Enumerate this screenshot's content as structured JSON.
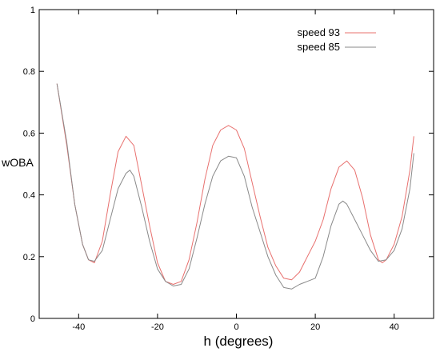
{
  "chart_data": {
    "type": "line",
    "title": "",
    "xlabel": "h (degrees)",
    "ylabel": "wOBA",
    "xlim": [
      -50,
      50
    ],
    "ylim": [
      0,
      1
    ],
    "x_ticks": [
      -40,
      -20,
      0,
      20,
      40
    ],
    "x_tick_labels": [
      "-40",
      "-20",
      "0",
      "20",
      "40"
    ],
    "y_ticks": [
      0,
      0.2,
      0.4,
      0.6,
      0.8,
      1
    ],
    "y_tick_labels": [
      "0",
      "0.2",
      "0.4",
      "0.6",
      "0.8",
      "1"
    ],
    "grid": false,
    "legend_position": "top-right",
    "series": [
      {
        "name": "speed 93",
        "color": "#e8706e",
        "x": [
          -45.5,
          -43,
          -41,
          -39,
          -37.5,
          -36,
          -34,
          -32,
          -30,
          -28,
          -26,
          -24,
          -22,
          -20,
          -18,
          -16,
          -14,
          -12,
          -10,
          -8,
          -6,
          -4,
          -2,
          0,
          2,
          4,
          6,
          8,
          10,
          12,
          14,
          16,
          18,
          20,
          22,
          24,
          26,
          28,
          30,
          32,
          34,
          36,
          37,
          38,
          40,
          42,
          44,
          45
        ],
        "y": [
          0.76,
          0.56,
          0.37,
          0.24,
          0.19,
          0.18,
          0.25,
          0.4,
          0.54,
          0.59,
          0.56,
          0.43,
          0.3,
          0.18,
          0.12,
          0.11,
          0.12,
          0.19,
          0.31,
          0.45,
          0.56,
          0.61,
          0.625,
          0.61,
          0.55,
          0.44,
          0.33,
          0.23,
          0.17,
          0.13,
          0.125,
          0.15,
          0.2,
          0.25,
          0.32,
          0.42,
          0.49,
          0.51,
          0.48,
          0.39,
          0.27,
          0.19,
          0.18,
          0.19,
          0.24,
          0.33,
          0.48,
          0.59
        ]
      },
      {
        "name": "speed 85",
        "color": "#8a8a8a",
        "x": [
          -45.5,
          -43,
          -41,
          -39,
          -37.5,
          -36,
          -34,
          -32,
          -30,
          -28,
          -27,
          -26,
          -24,
          -22,
          -20,
          -18,
          -16,
          -14,
          -12,
          -10,
          -8,
          -6,
          -4,
          -2,
          0,
          2,
          4,
          6,
          8,
          10,
          12,
          14,
          16,
          18,
          20,
          22,
          24,
          26,
          27,
          28,
          30,
          32,
          34,
          36,
          38,
          40,
          42,
          44,
          45
        ],
        "y": [
          0.76,
          0.57,
          0.37,
          0.24,
          0.19,
          0.185,
          0.22,
          0.32,
          0.42,
          0.47,
          0.48,
          0.46,
          0.36,
          0.25,
          0.16,
          0.12,
          0.105,
          0.11,
          0.16,
          0.26,
          0.37,
          0.46,
          0.51,
          0.525,
          0.52,
          0.46,
          0.36,
          0.28,
          0.2,
          0.14,
          0.1,
          0.095,
          0.11,
          0.12,
          0.13,
          0.2,
          0.3,
          0.37,
          0.38,
          0.37,
          0.32,
          0.27,
          0.22,
          0.185,
          0.19,
          0.22,
          0.29,
          0.42,
          0.535
        ]
      }
    ]
  }
}
